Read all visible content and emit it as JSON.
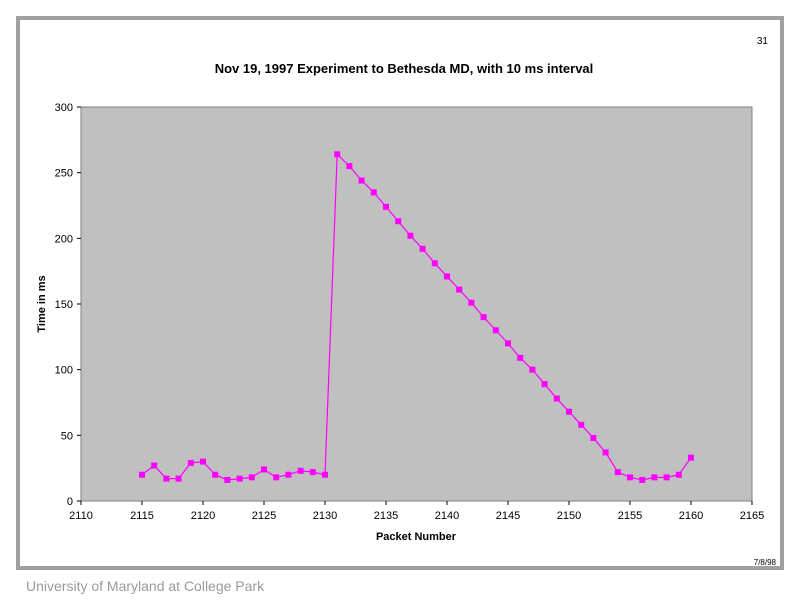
{
  "slide": {
    "page_number": "31",
    "date": "7/8/98",
    "footer": "University of Maryland at College Park"
  },
  "colors": {
    "plot_bg": "#c0c0c0",
    "series": "#ff00ff",
    "frame": "#a0a0a0"
  },
  "chart_data": {
    "type": "line",
    "title": "Nov 19, 1997 Experiment to Bethesda MD, with 10 ms interval",
    "xlabel": "Packet Number",
    "ylabel": "Time in ms",
    "xlim": [
      2110,
      2165
    ],
    "ylim": [
      0,
      300
    ],
    "xticks": [
      2110,
      2115,
      2120,
      2125,
      2130,
      2135,
      2140,
      2145,
      2150,
      2155,
      2160,
      2165
    ],
    "yticks": [
      0,
      50,
      100,
      150,
      200,
      250,
      300
    ],
    "grid": false,
    "legend": "none",
    "marker": "square",
    "series": [
      {
        "x": [
          2115,
          2116,
          2117,
          2118,
          2119,
          2120,
          2121,
          2122,
          2123,
          2124,
          2125,
          2126,
          2127,
          2128,
          2129,
          2130,
          2131,
          2132,
          2133,
          2134,
          2135,
          2136,
          2137,
          2138,
          2139,
          2140,
          2141,
          2142,
          2143,
          2144,
          2145,
          2146,
          2147,
          2148,
          2149,
          2150,
          2151,
          2152,
          2153,
          2154,
          2155,
          2156,
          2157,
          2158,
          2159,
          2160
        ],
        "y": [
          20,
          27,
          17,
          17,
          29,
          30,
          20,
          16,
          17,
          18,
          24,
          18,
          20,
          23,
          22,
          20,
          264,
          255,
          244,
          235,
          224,
          213,
          202,
          192,
          181,
          171,
          161,
          151,
          140,
          130,
          120,
          109,
          100,
          89,
          78,
          68,
          58,
          48,
          37,
          22,
          18,
          16,
          18,
          18,
          20,
          33
        ]
      }
    ]
  }
}
